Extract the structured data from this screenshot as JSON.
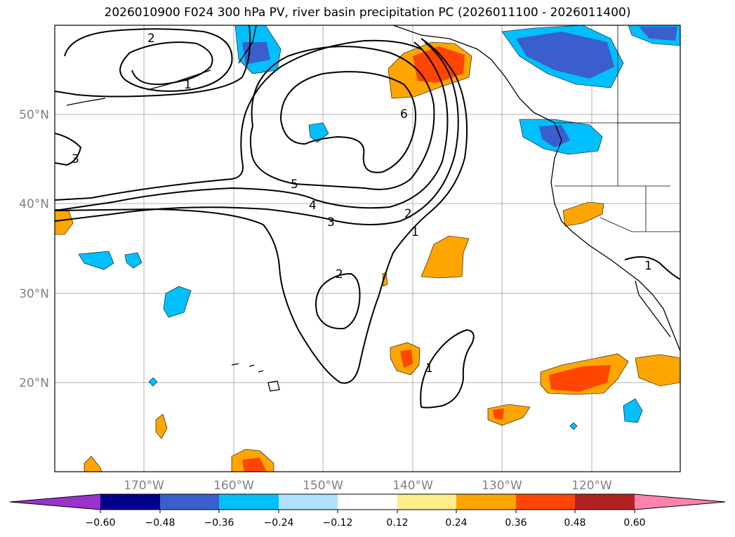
{
  "title": "2026010900 F024 300 hPa PV, river basin precipitation PC (2026011100 - 2026011400)",
  "map": {
    "lat_labels": [
      "50°N",
      "40°N",
      "30°N",
      "20°N"
    ],
    "lon_labels": [
      "170°W",
      "160°W",
      "150°W",
      "140°W",
      "130°W",
      "120°W"
    ],
    "contour_labels": [
      "2",
      "1",
      "3",
      "6",
      "5",
      "4",
      "3",
      "2",
      "1",
      "2",
      "1",
      "1"
    ]
  },
  "colorbar": {
    "colors": [
      "#9933cc",
      "#00008b",
      "#3a5fcd",
      "#00bfff",
      "#b0e2ff",
      "#ffffff",
      "#ffec8b",
      "#ffa500",
      "#ff4500",
      "#b22222",
      "#ff82ab"
    ],
    "tick_labels": [
      "−0.60",
      "−0.48",
      "−0.36",
      "−0.24",
      "−0.12",
      "0.12",
      "0.24",
      "0.36",
      "0.48",
      "0.60"
    ]
  }
}
